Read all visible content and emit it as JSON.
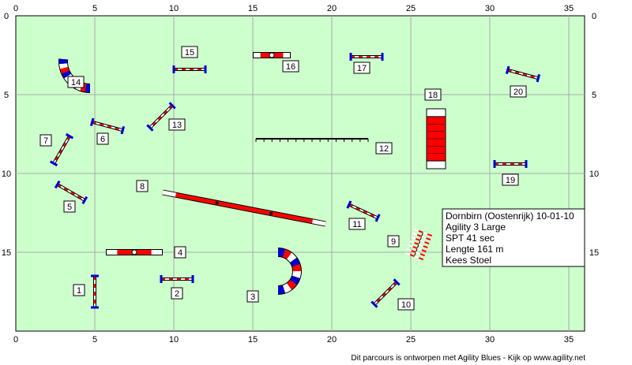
{
  "arena": {
    "width_m": 36,
    "height_m": 20
  },
  "axes": {
    "x_ticks": [
      0,
      5,
      10,
      15,
      20,
      25,
      30,
      35
    ],
    "y_ticks": [
      0,
      5,
      10,
      15
    ]
  },
  "colors": {
    "field": "#ccffcc",
    "grid": "#aaaaaa",
    "red": "#ff0000",
    "blue": "#0000cc",
    "white": "#ffffff",
    "dark": "#000000"
  },
  "info_box": {
    "lines": [
      "Dornbirn (Oostenrijk) 10-01-10",
      "Agility 3 Large",
      "SPT 41 sec",
      "Lengte 161 m",
      "Kees Stoel"
    ]
  },
  "credit": "Dit parcours is ontworpen met Agility Blues - Kijk op www.agility.net",
  "obstacles": [
    {
      "num": "1",
      "type": "jump",
      "x": 5.0,
      "y": 17.5,
      "angle": 90,
      "len": 2.0,
      "label_x": 4.0,
      "label_y": 17.4
    },
    {
      "num": "2",
      "type": "jump",
      "x": 10.2,
      "y": 16.7,
      "angle": 0,
      "len": 2.0,
      "label_x": 10.2,
      "label_y": 17.6
    },
    {
      "num": "3",
      "type": "tunnel_arc",
      "cx": 16.6,
      "cy": 16.2,
      "r": 1.2,
      "start": 270,
      "end": 450,
      "label_x": 15.0,
      "label_y": 17.8
    },
    {
      "num": "4",
      "type": "tire_bar",
      "x": 7.5,
      "y": 15.0,
      "angle": 0,
      "len": 3.6,
      "label_x": 10.4,
      "label_y": 15.0
    },
    {
      "num": "5",
      "type": "jump",
      "x": 3.5,
      "y": 11.2,
      "angle": 30,
      "len": 2.0,
      "label_x": 3.4,
      "label_y": 12.1
    },
    {
      "num": "6",
      "type": "jump",
      "x": 5.8,
      "y": 7.0,
      "angle": 15,
      "len": 2.0,
      "label_x": 5.5,
      "label_y": 7.8
    },
    {
      "num": "7",
      "type": "jump",
      "x": 2.9,
      "y": 8.5,
      "angle": 120,
      "len": 2.0,
      "label_x": 1.9,
      "label_y": 7.9
    },
    {
      "num": "8",
      "type": "dogwalk",
      "x1": 9.3,
      "y1": 11.2,
      "x2": 19.6,
      "y2": 13.2,
      "label_x": 8.0,
      "label_y": 10.8
    },
    {
      "num": "9",
      "type": "weave",
      "x": 25.5,
      "y": 14.5,
      "angle": 110,
      "len": 1.6,
      "label_x": 23.9,
      "label_y": 14.3
    },
    {
      "num": "10",
      "type": "jump",
      "x": 23.4,
      "y": 17.6,
      "angle": 135,
      "len": 2.0,
      "label_x": 24.7,
      "label_y": 18.3
    },
    {
      "num": "11",
      "type": "jump",
      "x": 22.0,
      "y": 12.4,
      "angle": 25,
      "len": 2.0,
      "label_x": 21.6,
      "label_y": 13.2
    },
    {
      "num": "12",
      "type": "table_rail",
      "x1": 15.2,
      "y1": 7.8,
      "x2": 22.3,
      "y2": 7.8,
      "label_x": 23.3,
      "label_y": 8.4
    },
    {
      "num": "13",
      "type": "jump",
      "x": 9.2,
      "y": 6.4,
      "angle": 135,
      "len": 2.0,
      "label_x": 10.2,
      "label_y": 6.9
    },
    {
      "num": "14",
      "type": "tunnel_arc",
      "cx": 4.7,
      "cy": 2.9,
      "r": 1.7,
      "start": 90,
      "end": 185,
      "label_x": 3.8,
      "label_y": 4.2
    },
    {
      "num": "15",
      "type": "jump",
      "x": 11.0,
      "y": 3.4,
      "angle": 0,
      "len": 2.0,
      "label_x": 11.0,
      "label_y": 2.3
    },
    {
      "num": "16",
      "type": "tire_bar",
      "x": 16.2,
      "y": 2.5,
      "angle": 0,
      "len": 2.4,
      "label_x": 17.4,
      "label_y": 3.2
    },
    {
      "num": "17",
      "type": "jump",
      "x": 22.2,
      "y": 2.6,
      "angle": 0,
      "len": 2.0,
      "label_x": 21.9,
      "label_y": 3.3
    },
    {
      "num": "18",
      "type": "a_frame",
      "x": 26.6,
      "y": 7.8,
      "angle": 90,
      "len": 3.8,
      "w": 1.2,
      "label_x": 26.4,
      "label_y": 5.0
    },
    {
      "num": "19",
      "type": "jump",
      "x": 31.3,
      "y": 9.4,
      "angle": 0,
      "len": 2.0,
      "label_x": 31.3,
      "label_y": 10.4
    },
    {
      "num": "20",
      "type": "jump",
      "x": 32.1,
      "y": 3.7,
      "angle": 15,
      "len": 2.0,
      "label_x": 31.8,
      "label_y": 4.8
    }
  ]
}
